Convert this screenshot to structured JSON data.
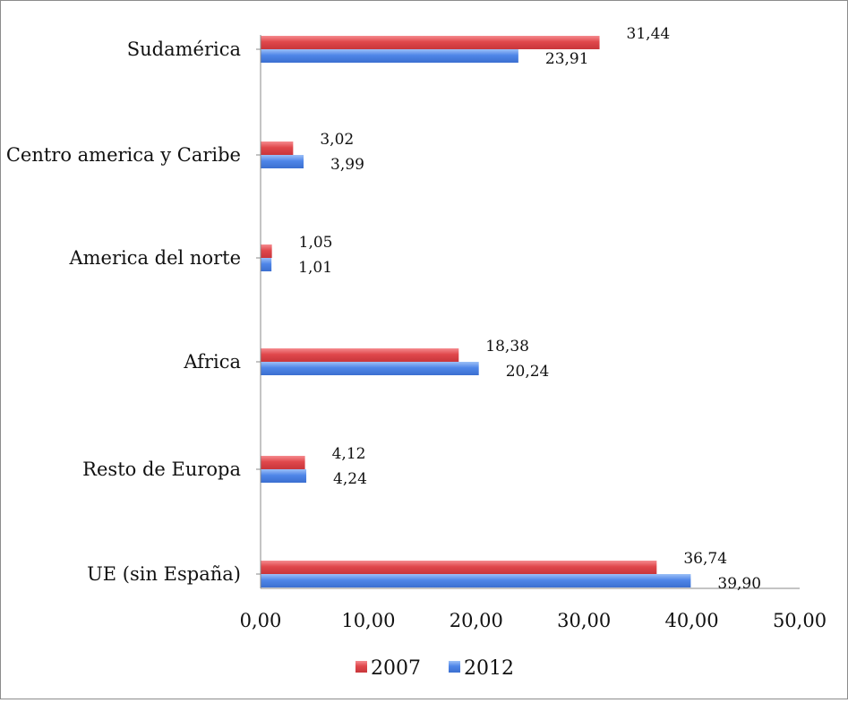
{
  "chart_data": {
    "type": "bar",
    "orientation": "horizontal",
    "categories": [
      "UE (sin España)",
      "Resto de Europa",
      "Africa",
      "America del norte",
      "Centro america y Caribe",
      "Sudamérica"
    ],
    "series": [
      {
        "name": "2007",
        "color": "#e0474c",
        "values": [
          36.74,
          4.12,
          18.38,
          1.05,
          3.02,
          31.44
        ],
        "labels": [
          "36,74",
          "4,12",
          "18,38",
          "1,05",
          "3,02",
          "31,44"
        ]
      },
      {
        "name": "2012",
        "color": "#4f86e8",
        "values": [
          39.9,
          4.24,
          20.24,
          1.01,
          3.99,
          23.91
        ],
        "labels": [
          "39,90",
          "4,24",
          "20,24",
          "1,01",
          "3,99",
          "23,91"
        ]
      }
    ],
    "x_ticks": [
      "0,00",
      "10,00",
      "20,00",
      "30,00",
      "40,00",
      "50,00"
    ],
    "xlim": [
      0,
      50
    ],
    "grid": false,
    "legend_position": "bottom"
  }
}
